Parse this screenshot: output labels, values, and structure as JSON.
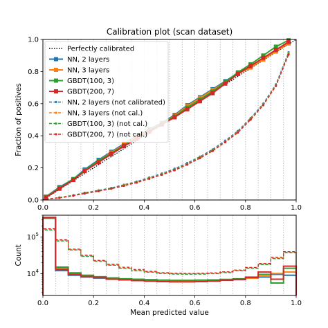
{
  "figure": {
    "title": "Calibration plot (scan dataset)"
  },
  "chart_data": [
    {
      "type": "line",
      "title": "Calibration plot (scan dataset)",
      "xlabel": "",
      "ylabel": "Fraction of positives",
      "xlim": [
        0,
        1
      ],
      "ylim": [
        0,
        1
      ],
      "xticks": [
        "0.0",
        "0.2",
        "0.4",
        "0.6",
        "0.8",
        "1.0"
      ],
      "yticks": [
        "0.0",
        "0.2",
        "0.4",
        "0.6",
        "0.8",
        "1.0"
      ],
      "vertical_dotted_gridlines_at": [
        0.05,
        0.1,
        0.15,
        0.2,
        0.25,
        0.3,
        0.35,
        0.4,
        0.45,
        0.5,
        0.55,
        0.6,
        0.65,
        0.7,
        0.75,
        0.8,
        0.85,
        0.9,
        0.95
      ],
      "legend_position": "top-left",
      "reference": {
        "name": "Perfectly calibrated",
        "color": "#000000",
        "x": [
          0,
          1
        ],
        "y": [
          0,
          1
        ]
      },
      "x": [
        0.012,
        0.065,
        0.12,
        0.165,
        0.22,
        0.27,
        0.32,
        0.37,
        0.42,
        0.47,
        0.52,
        0.57,
        0.62,
        0.67,
        0.72,
        0.77,
        0.82,
        0.87,
        0.92,
        0.97
      ],
      "series": [
        {
          "name": "NN, 2 layers",
          "color": "#1f77b4",
          "style": "solid",
          "marker": "square",
          "values": [
            0.02,
            0.08,
            0.13,
            0.19,
            0.25,
            0.3,
            0.35,
            0.4,
            0.44,
            0.48,
            0.53,
            0.59,
            0.64,
            0.69,
            0.74,
            0.79,
            0.83,
            0.88,
            0.93,
            0.98
          ]
        },
        {
          "name": "NN, 3 layers",
          "color": "#ff7f0e",
          "style": "solid",
          "marker": "square",
          "values": [
            0.02,
            0.075,
            0.125,
            0.185,
            0.245,
            0.295,
            0.345,
            0.395,
            0.435,
            0.475,
            0.525,
            0.585,
            0.635,
            0.685,
            0.735,
            0.785,
            0.825,
            0.875,
            0.925,
            0.975
          ]
        },
        {
          "name": "GBDT(100, 3)",
          "color": "#2ca02c",
          "style": "solid",
          "marker": "square",
          "values": [
            0.02,
            0.075,
            0.13,
            0.185,
            0.245,
            0.29,
            0.34,
            0.385,
            0.43,
            0.475,
            0.52,
            0.575,
            0.625,
            0.675,
            0.735,
            0.795,
            0.845,
            0.9,
            0.955,
            0.995
          ]
        },
        {
          "name": "GBDT(200, 7)",
          "color": "#d62728",
          "style": "solid",
          "marker": "square",
          "values": [
            0.015,
            0.07,
            0.125,
            0.18,
            0.235,
            0.285,
            0.335,
            0.38,
            0.425,
            0.47,
            0.515,
            0.565,
            0.615,
            0.665,
            0.725,
            0.785,
            0.835,
            0.885,
            0.935,
            0.985
          ]
        },
        {
          "name": "NN, 2 layers (not calibrated)",
          "color": "#1f77b4",
          "style": "dashed",
          "marker": "dot",
          "values": [
            0.005,
            0.015,
            0.03,
            0.045,
            0.06,
            0.075,
            0.095,
            0.115,
            0.14,
            0.165,
            0.195,
            0.23,
            0.27,
            0.315,
            0.37,
            0.43,
            0.51,
            0.6,
            0.72,
            0.92
          ]
        },
        {
          "name": "NN, 3 layers (not cal.)",
          "color": "#ff7f0e",
          "style": "dashed",
          "marker": "dot",
          "values": [
            0.005,
            0.015,
            0.028,
            0.043,
            0.058,
            0.073,
            0.092,
            0.112,
            0.137,
            0.162,
            0.19,
            0.225,
            0.265,
            0.31,
            0.365,
            0.425,
            0.505,
            0.595,
            0.715,
            0.915
          ]
        },
        {
          "name": "GBDT(100, 3)  (not cal.)",
          "color": "#2ca02c",
          "style": "dashed",
          "marker": "dot",
          "values": [
            0.005,
            0.014,
            0.027,
            0.042,
            0.057,
            0.072,
            0.09,
            0.11,
            0.135,
            0.16,
            0.188,
            0.222,
            0.262,
            0.307,
            0.362,
            0.422,
            0.502,
            0.592,
            0.712,
            0.91
          ]
        },
        {
          "name": "GBDT(200, 7) (not cal.)",
          "color": "#d62728",
          "style": "dashed",
          "marker": "dot",
          "values": [
            0.005,
            0.013,
            0.026,
            0.04,
            0.055,
            0.07,
            0.088,
            0.108,
            0.132,
            0.157,
            0.185,
            0.22,
            0.26,
            0.305,
            0.36,
            0.42,
            0.5,
            0.59,
            0.71,
            0.905
          ]
        }
      ]
    },
    {
      "type": "bar",
      "title": "",
      "xlabel": "Mean predicted value",
      "ylabel": "Count",
      "xlim": [
        0,
        1
      ],
      "yscale": "log",
      "ylim": [
        2500,
        400000
      ],
      "xticks": [
        "0.0",
        "0.2",
        "0.4",
        "0.6",
        "0.8",
        "1.0"
      ],
      "yticks": [
        "10^4",
        "10^5"
      ],
      "histtype": "step",
      "bin_edges": [
        0.0,
        0.05,
        0.1,
        0.15,
        0.2,
        0.25,
        0.3,
        0.35,
        0.4,
        0.45,
        0.5,
        0.55,
        0.6,
        0.65,
        0.7,
        0.75,
        0.8,
        0.85,
        0.9,
        0.95,
        1.0
      ],
      "series": [
        {
          "name": "NN, 2 layers",
          "color": "#1f77b4",
          "style": "solid",
          "values": [
            350000,
            12000,
            9000,
            8000,
            7500,
            7000,
            6800,
            6600,
            6400,
            6300,
            6200,
            6200,
            6300,
            6400,
            6600,
            6800,
            7500,
            8000,
            9500,
            9000
          ]
        },
        {
          "name": "NN, 3 layers",
          "color": "#ff7f0e",
          "style": "solid",
          "values": [
            340000,
            14000,
            10000,
            8500,
            7800,
            7200,
            7000,
            6800,
            6600,
            6500,
            6400,
            6400,
            6500,
            6600,
            6800,
            7000,
            7500,
            8500,
            10000,
            11000
          ]
        },
        {
          "name": "GBDT(100, 3)",
          "color": "#2ca02c",
          "style": "solid",
          "values": [
            330000,
            15000,
            10500,
            9000,
            8200,
            7600,
            7200,
            7000,
            6800,
            6600,
            6500,
            6500,
            6600,
            6700,
            6900,
            7200,
            8000,
            9500,
            5500,
            14000
          ]
        },
        {
          "name": "GBDT(200, 7)",
          "color": "#d62728",
          "style": "solid",
          "values": [
            340000,
            13000,
            9500,
            8300,
            7700,
            7000,
            6700,
            6400,
            6200,
            6000,
            5900,
            5900,
            6000,
            6200,
            6500,
            6900,
            7800,
            11000,
            7000,
            16000
          ]
        },
        {
          "name": "NN, 2 layers (not calibrated)",
          "color": "#1f77b4",
          "style": "dashed",
          "values": [
            160000,
            80000,
            45000,
            30000,
            22000,
            17000,
            14000,
            12000,
            11000,
            10200,
            9800,
            9700,
            9800,
            10000,
            10800,
            12000,
            14000,
            18000,
            26000,
            38000
          ]
        },
        {
          "name": "NN, 3 layers (not cal.)",
          "color": "#ff7f0e",
          "style": "dashed",
          "values": [
            165000,
            82000,
            46000,
            31000,
            22500,
            17500,
            14500,
            12500,
            11200,
            10400,
            10000,
            9900,
            10000,
            10300,
            11000,
            12300,
            14500,
            18500,
            27000,
            39000
          ]
        },
        {
          "name": "GBDT(100, 3)  (not cal.)",
          "color": "#2ca02c",
          "style": "dashed",
          "values": [
            155000,
            78000,
            44000,
            29500,
            21500,
            16800,
            13800,
            11800,
            10800,
            10000,
            9600,
            9500,
            9600,
            9900,
            10600,
            11800,
            13800,
            17500,
            25500,
            37000
          ]
        },
        {
          "name": "GBDT(200, 7) (not cal.)",
          "color": "#d62728",
          "style": "dashed",
          "values": [
            170000,
            85000,
            47000,
            32000,
            23000,
            18000,
            15000,
            13000,
            11500,
            10600,
            10200,
            10100,
            10200,
            10500,
            11200,
            12500,
            14800,
            19000,
            28000,
            40000
          ]
        }
      ]
    }
  ]
}
